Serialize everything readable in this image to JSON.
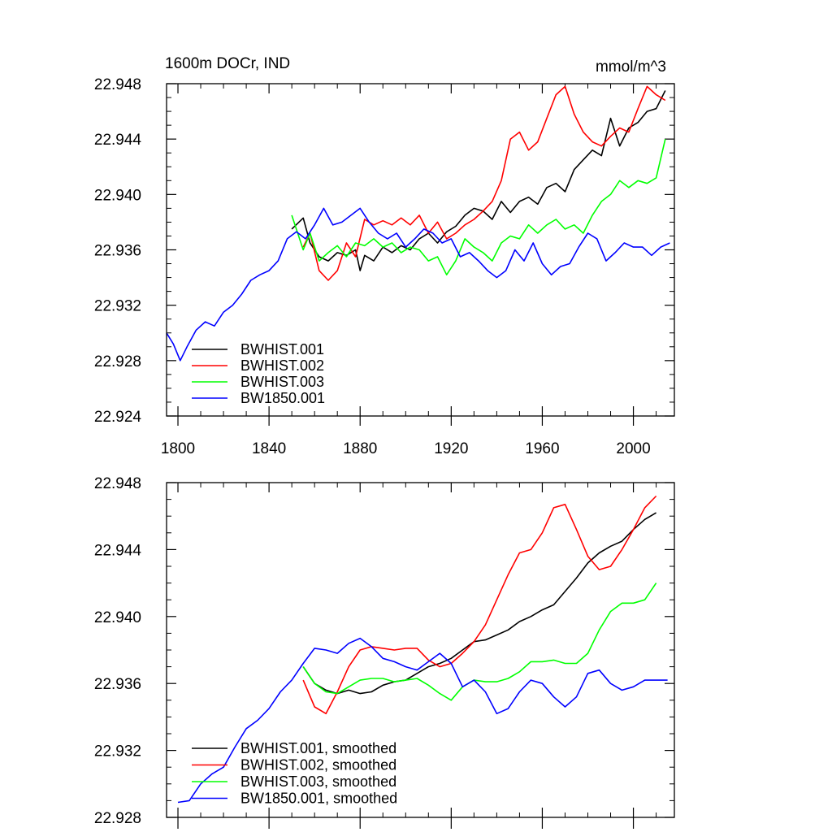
{
  "chart_data": [
    {
      "type": "line",
      "title": "1600m DOCr, IND",
      "units": "mmol/m^3",
      "xlim": [
        1795,
        2018
      ],
      "ylim": [
        22.924,
        22.948
      ],
      "xticks": [
        1800,
        1840,
        1880,
        1920,
        1960,
        2000
      ],
      "xtick_labels": [
        "1800",
        "1840",
        "1880",
        "1920",
        "1960",
        "2000"
      ],
      "yticks": [
        22.924,
        22.928,
        22.932,
        22.936,
        22.94,
        22.944,
        22.948
      ],
      "ytick_labels": [
        "22.924",
        "22.928",
        "22.932",
        "22.936",
        "22.940",
        "22.944",
        "22.948"
      ],
      "legend_position": "bottom-left",
      "series": [
        {
          "name": "BWHIST.001",
          "color": "#000000",
          "x": [
            1850,
            1855,
            1858,
            1862,
            1866,
            1870,
            1874,
            1878,
            1880,
            1882,
            1886,
            1890,
            1894,
            1898,
            1902,
            1906,
            1910,
            1914,
            1918,
            1922,
            1926,
            1930,
            1934,
            1938,
            1942,
            1946,
            1950,
            1954,
            1958,
            1962,
            1966,
            1970,
            1974,
            1978,
            1982,
            1986,
            1990,
            1994,
            1998,
            2002,
            2006,
            2010,
            2014
          ],
          "values": [
            22.9375,
            22.9383,
            22.9365,
            22.9355,
            22.9352,
            22.9358,
            22.9356,
            22.936,
            22.9345,
            22.9356,
            22.9352,
            22.9362,
            22.9358,
            22.9363,
            22.936,
            22.9368,
            22.9372,
            22.9365,
            22.9373,
            22.9377,
            22.9385,
            22.939,
            22.9388,
            22.9382,
            22.9395,
            22.9387,
            22.9395,
            22.9398,
            22.9393,
            22.9405,
            22.9408,
            22.9402,
            22.9418,
            22.9425,
            22.9432,
            22.9428,
            22.9455,
            22.9435,
            22.9448,
            22.9452,
            22.946,
            22.9462,
            22.9475
          ]
        },
        {
          "name": "BWHIST.002",
          "color": "#ff0000",
          "x": [
            1855,
            1858,
            1862,
            1866,
            1870,
            1874,
            1878,
            1882,
            1886,
            1890,
            1894,
            1898,
            1902,
            1906,
            1910,
            1914,
            1918,
            1922,
            1926,
            1930,
            1934,
            1938,
            1942,
            1946,
            1950,
            1954,
            1958,
            1962,
            1966,
            1970,
            1974,
            1978,
            1982,
            1986,
            1990,
            1994,
            1998,
            2002,
            2006,
            2010,
            2014
          ],
          "values": [
            22.9362,
            22.9372,
            22.9345,
            22.9338,
            22.9345,
            22.9365,
            22.9355,
            22.9382,
            22.9378,
            22.9381,
            22.9378,
            22.9383,
            22.9378,
            22.9385,
            22.9372,
            22.938,
            22.9368,
            22.9372,
            22.9378,
            22.9382,
            22.9388,
            22.9395,
            22.941,
            22.944,
            22.9445,
            22.9432,
            22.9438,
            22.9455,
            22.9472,
            22.9478,
            22.9458,
            22.9445,
            22.9438,
            22.9435,
            22.9442,
            22.9448,
            22.9445,
            22.9462,
            22.9478,
            22.9472,
            22.9468
          ]
        },
        {
          "name": "BWHIST.003",
          "color": "#00ff00",
          "x": [
            1850,
            1855,
            1858,
            1862,
            1866,
            1870,
            1874,
            1878,
            1882,
            1886,
            1890,
            1894,
            1898,
            1902,
            1906,
            1910,
            1914,
            1918,
            1922,
            1926,
            1930,
            1934,
            1938,
            1942,
            1946,
            1950,
            1954,
            1958,
            1962,
            1966,
            1970,
            1974,
            1978,
            1982,
            1986,
            1990,
            1994,
            1998,
            2002,
            2006,
            2010,
            2014
          ],
          "values": [
            22.9385,
            22.936,
            22.9372,
            22.9352,
            22.9358,
            22.9363,
            22.9355,
            22.9365,
            22.9363,
            22.9368,
            22.9362,
            22.9365,
            22.9358,
            22.9362,
            22.936,
            22.9352,
            22.9355,
            22.9342,
            22.9352,
            22.9368,
            22.9362,
            22.9358,
            22.9352,
            22.9365,
            22.937,
            22.9368,
            22.9378,
            22.9372,
            22.9378,
            22.9382,
            22.9375,
            22.9378,
            22.9372,
            22.9385,
            22.9395,
            22.94,
            22.941,
            22.9405,
            22.941,
            22.9408,
            22.9412,
            22.944
          ]
        },
        {
          "name": "BW1850.001",
          "color": "#0000ff",
          "x": [
            1795,
            1798,
            1801,
            1804,
            1808,
            1812,
            1816,
            1820,
            1824,
            1828,
            1832,
            1836,
            1840,
            1844,
            1848,
            1852,
            1856,
            1860,
            1864,
            1868,
            1872,
            1876,
            1880,
            1884,
            1888,
            1892,
            1896,
            1900,
            1904,
            1908,
            1912,
            1916,
            1920,
            1924,
            1928,
            1932,
            1936,
            1940,
            1944,
            1948,
            1952,
            1956,
            1960,
            1964,
            1968,
            1972,
            1976,
            1980,
            1984,
            1988,
            1992,
            1996,
            2000,
            2004,
            2008,
            2012,
            2016
          ],
          "values": [
            22.93,
            22.9292,
            22.928,
            22.929,
            22.9302,
            22.9308,
            22.9305,
            22.9315,
            22.932,
            22.9328,
            22.9338,
            22.9342,
            22.9345,
            22.9352,
            22.9368,
            22.9373,
            22.9368,
            22.9378,
            22.939,
            22.9378,
            22.938,
            22.9385,
            22.939,
            22.938,
            22.9372,
            22.9368,
            22.9372,
            22.9362,
            22.9368,
            22.9375,
            22.9372,
            22.9365,
            22.9368,
            22.9355,
            22.9358,
            22.9352,
            22.9345,
            22.934,
            22.9345,
            22.936,
            22.9352,
            22.9365,
            22.935,
            22.9342,
            22.9348,
            22.935,
            22.9362,
            22.9372,
            22.9368,
            22.9352,
            22.9358,
            22.9365,
            22.9362,
            22.9362,
            22.9356,
            22.9362,
            22.9365
          ]
        }
      ]
    },
    {
      "type": "line",
      "title": "",
      "xlim": [
        1795,
        2018
      ],
      "ylim": [
        22.928,
        22.948
      ],
      "xticks": [
        1800,
        1840,
        1880,
        1920,
        1960,
        2000
      ],
      "yticks": [
        22.928,
        22.932,
        22.936,
        22.94,
        22.944,
        22.948
      ],
      "ytick_labels": [
        "22.928",
        "22.932",
        "22.936",
        "22.940",
        "22.944",
        "22.948"
      ],
      "legend_position": "bottom-left",
      "series": [
        {
          "name": "BWHIST.001, smoothed",
          "color": "#000000",
          "x": [
            1855,
            1860,
            1865,
            1870,
            1875,
            1880,
            1885,
            1890,
            1895,
            1900,
            1905,
            1910,
            1915,
            1920,
            1925,
            1930,
            1935,
            1940,
            1945,
            1950,
            1955,
            1960,
            1965,
            1970,
            1975,
            1980,
            1985,
            1990,
            1995,
            2000,
            2005,
            2010
          ],
          "values": [
            22.937,
            22.936,
            22.9356,
            22.9354,
            22.9356,
            22.9354,
            22.9355,
            22.9359,
            22.9361,
            22.9362,
            22.9366,
            22.937,
            22.9372,
            22.9375,
            22.938,
            22.9385,
            22.9386,
            22.9389,
            22.9392,
            22.9397,
            22.94,
            22.9404,
            22.9407,
            22.9415,
            22.9423,
            22.9432,
            22.9438,
            22.9442,
            22.9445,
            22.9452,
            22.9458,
            22.9462
          ]
        },
        {
          "name": "BWHIST.002, smoothed",
          "color": "#ff0000",
          "x": [
            1855,
            1860,
            1865,
            1870,
            1875,
            1880,
            1885,
            1890,
            1895,
            1900,
            1905,
            1910,
            1915,
            1920,
            1925,
            1930,
            1935,
            1940,
            1945,
            1950,
            1955,
            1960,
            1965,
            1970,
            1975,
            1980,
            1985,
            1990,
            1995,
            2000,
            2005,
            2010
          ],
          "values": [
            22.9362,
            22.9346,
            22.9342,
            22.9355,
            22.937,
            22.938,
            22.9382,
            22.9381,
            22.938,
            22.9381,
            22.9381,
            22.9374,
            22.937,
            22.9372,
            22.9378,
            22.9385,
            22.9395,
            22.941,
            22.9425,
            22.9438,
            22.944,
            22.945,
            22.9465,
            22.9467,
            22.9452,
            22.9436,
            22.9428,
            22.943,
            22.944,
            22.9452,
            22.9465,
            22.9472
          ]
        },
        {
          "name": "BWHIST.003, smoothed",
          "color": "#00ff00",
          "x": [
            1855,
            1860,
            1865,
            1870,
            1875,
            1880,
            1885,
            1890,
            1895,
            1900,
            1905,
            1910,
            1915,
            1920,
            1925,
            1930,
            1935,
            1940,
            1945,
            1950,
            1955,
            1960,
            1965,
            1970,
            1975,
            1980,
            1985,
            1990,
            1995,
            2000,
            2005,
            2010
          ],
          "values": [
            22.937,
            22.936,
            22.9355,
            22.9354,
            22.9358,
            22.9362,
            22.9363,
            22.9363,
            22.9361,
            22.9362,
            22.9363,
            22.9359,
            22.9354,
            22.935,
            22.9358,
            22.9362,
            22.9361,
            22.9361,
            22.9363,
            22.9367,
            22.9373,
            22.9373,
            22.9374,
            22.9372,
            22.9372,
            22.9378,
            22.9392,
            22.9403,
            22.9408,
            22.9408,
            22.941,
            22.942
          ]
        },
        {
          "name": "BW1850.001, smoothed",
          "color": "#0000ff",
          "x": [
            1800,
            1805,
            1810,
            1815,
            1820,
            1825,
            1830,
            1835,
            1840,
            1845,
            1850,
            1855,
            1860,
            1865,
            1870,
            1875,
            1880,
            1885,
            1890,
            1895,
            1900,
            1905,
            1910,
            1915,
            1920,
            1925,
            1930,
            1935,
            1940,
            1945,
            1950,
            1955,
            1960,
            1965,
            1970,
            1975,
            1980,
            1985,
            1990,
            1995,
            2000,
            2005,
            2010,
            2015
          ],
          "values": [
            22.9289,
            22.929,
            22.93,
            22.9306,
            22.931,
            22.9322,
            22.9333,
            22.9338,
            22.9345,
            22.9355,
            22.9362,
            22.9372,
            22.9381,
            22.938,
            22.9378,
            22.9384,
            22.9387,
            22.9382,
            22.9375,
            22.9373,
            22.937,
            22.9368,
            22.9373,
            22.9378,
            22.9372,
            22.9358,
            22.9362,
            22.9355,
            22.9342,
            22.9345,
            22.9355,
            22.9362,
            22.936,
            22.9352,
            22.9346,
            22.9352,
            22.9366,
            22.9368,
            22.936,
            22.9356,
            22.9358,
            22.9362,
            22.9362,
            22.9362
          ]
        }
      ]
    }
  ]
}
